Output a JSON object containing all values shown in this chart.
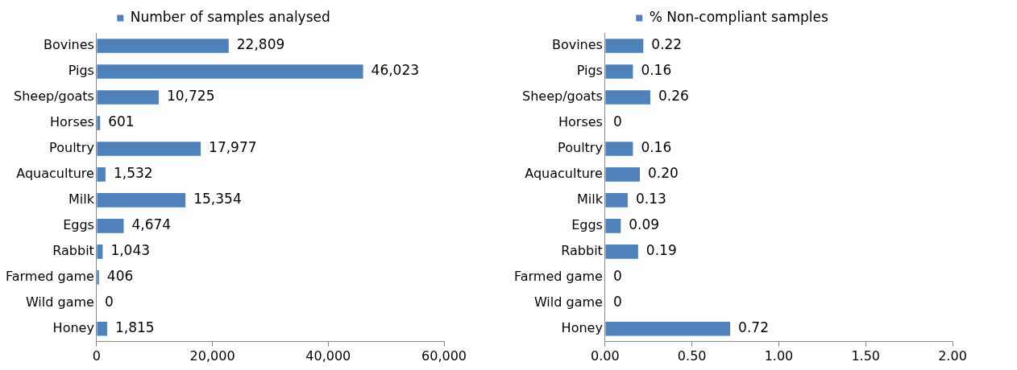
{
  "chart_data": [
    {
      "type": "bar",
      "orientation": "horizontal",
      "legend": "top",
      "categories": [
        "Bovines",
        "Pigs",
        "Sheep/goats",
        "Horses",
        "Poultry",
        "Aquaculture",
        "Milk",
        "Eggs",
        "Rabbit",
        "Farmed game",
        "Wild game",
        "Honey"
      ],
      "series": [
        {
          "name": "Number of samples analysed",
          "color": "#4f81bd",
          "values": [
            22809,
            46023,
            10725,
            601,
            17977,
            1532,
            15354,
            4674,
            1043,
            406,
            0,
            1815
          ],
          "value_labels": [
            "22,809",
            "46,023",
            "10,725",
            "601",
            "17,977",
            "1,532",
            "15,354",
            "4,674",
            "1,043",
            "406",
            "0",
            "1,815"
          ]
        }
      ],
      "xlim": [
        0,
        60000
      ],
      "xticks": [
        0,
        {
          "value": 20000,
          "label": "20,000"
        },
        {
          "value": 40000,
          "label": "40,000"
        },
        {
          "value": 60000,
          "label": "60,000"
        }
      ]
    },
    {
      "type": "bar",
      "orientation": "horizontal",
      "legend": "top",
      "categories": [
        "Bovines",
        "Pigs",
        "Sheep/goats",
        "Horses",
        "Poultry",
        "Aquaculture",
        "Milk",
        "Eggs",
        "Rabbit",
        "Farmed game",
        "Wild game",
        "Honey"
      ],
      "series": [
        {
          "name": "% Non-compliant samples",
          "color": "#4f81bd",
          "values": [
            0.22,
            0.16,
            0.26,
            0,
            0.16,
            0.2,
            0.13,
            0.09,
            0.19,
            0,
            0,
            0.72
          ],
          "value_labels": [
            "0.22",
            "0.16",
            "0.26",
            "0",
            "0.16",
            "0.20",
            "0.13",
            "0.09",
            "0.19",
            "0",
            "0",
            "0.72"
          ]
        }
      ],
      "xlim": [
        0,
        2
      ],
      "xticks": [
        {
          "value": 0,
          "label": "0.00"
        },
        {
          "value": 0.5,
          "label": "0.50"
        },
        {
          "value": 1,
          "label": "1.00"
        },
        {
          "value": 1.5,
          "label": "1.50"
        },
        {
          "value": 2,
          "label": "2.00"
        }
      ]
    }
  ]
}
